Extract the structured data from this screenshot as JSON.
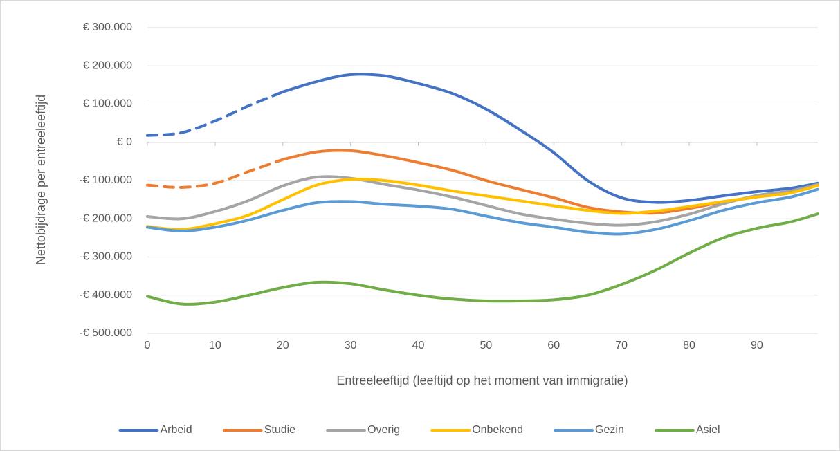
{
  "chart_data": {
    "type": "line",
    "x_label": "Entreeleeftijd (leeftijd op het moment van immigratie)",
    "y_label": "Nettobijdrage per entreeleeftijd",
    "x": [
      0,
      5,
      10,
      15,
      20,
      25,
      30,
      35,
      40,
      45,
      50,
      55,
      60,
      65,
      70,
      75,
      80,
      85,
      90,
      95,
      99
    ],
    "xlim": [
      0,
      99
    ],
    "xticks": [
      0,
      10,
      20,
      30,
      40,
      50,
      60,
      70,
      80,
      90
    ],
    "ylim": [
      -500000,
      300000
    ],
    "yticks": [
      {
        "value": -500000,
        "label": "-€ 500.000"
      },
      {
        "value": -400000,
        "label": "-€ 400.000"
      },
      {
        "value": -300000,
        "label": "-€ 300.000"
      },
      {
        "value": -200000,
        "label": "-€ 200.000"
      },
      {
        "value": -100000,
        "label": "-€ 100.000"
      },
      {
        "value": 0,
        "label": "€ 0"
      },
      {
        "value": 100000,
        "label": "€ 100.000"
      },
      {
        "value": 200000,
        "label": "€ 200.000"
      },
      {
        "value": 300000,
        "label": "€ 300.000"
      }
    ],
    "grid": true,
    "legend": "bottom",
    "series": [
      {
        "name": "Arbeid",
        "color": "#4472c4",
        "dashed_until": 20,
        "values": [
          18000,
          25000,
          56000,
          96000,
          132000,
          159000,
          177000,
          174000,
          154000,
          128000,
          87000,
          33000,
          -27000,
          -100000,
          -145000,
          -157000,
          -152000,
          -140000,
          -129000,
          -120000,
          -107000
        ]
      },
      {
        "name": "Studie",
        "color": "#ed7d31",
        "dashed_until": 20,
        "values": [
          -112000,
          -118000,
          -107000,
          -76000,
          -45000,
          -25000,
          -22000,
          -35000,
          -53000,
          -73000,
          -100000,
          -123000,
          -145000,
          -170000,
          -182000,
          -185000,
          -173000,
          -156000,
          -143000,
          -132000,
          -110000
        ]
      },
      {
        "name": "Overig",
        "color": "#a5a5a5",
        "values": [
          -194000,
          -200000,
          -181000,
          -152000,
          -114000,
          -91000,
          -94000,
          -110000,
          -125000,
          -143000,
          -165000,
          -187000,
          -201000,
          -212000,
          -217000,
          -208000,
          -188000,
          -161000,
          -139000,
          -127000,
          -110000
        ]
      },
      {
        "name": "Onbekend",
        "color": "#ffc000",
        "values": [
          -220000,
          -228000,
          -213000,
          -190000,
          -150000,
          -112000,
          -97000,
          -100000,
          -112000,
          -127000,
          -140000,
          -153000,
          -166000,
          -178000,
          -186000,
          -180000,
          -168000,
          -155000,
          -143000,
          -132000,
          -113000
        ]
      },
      {
        "name": "Gezin",
        "color": "#5b9bd5",
        "values": [
          -222000,
          -232000,
          -222000,
          -203000,
          -178000,
          -158000,
          -155000,
          -162000,
          -167000,
          -175000,
          -193000,
          -210000,
          -222000,
          -235000,
          -240000,
          -228000,
          -205000,
          -178000,
          -158000,
          -143000,
          -123000
        ]
      },
      {
        "name": "Asiel",
        "color": "#70ad47",
        "values": [
          -403000,
          -423000,
          -418000,
          -400000,
          -380000,
          -366000,
          -370000,
          -386000,
          -400000,
          -410000,
          -415000,
          -415000,
          -412000,
          -400000,
          -372000,
          -335000,
          -290000,
          -250000,
          -225000,
          -208000,
          -187000
        ]
      }
    ]
  }
}
